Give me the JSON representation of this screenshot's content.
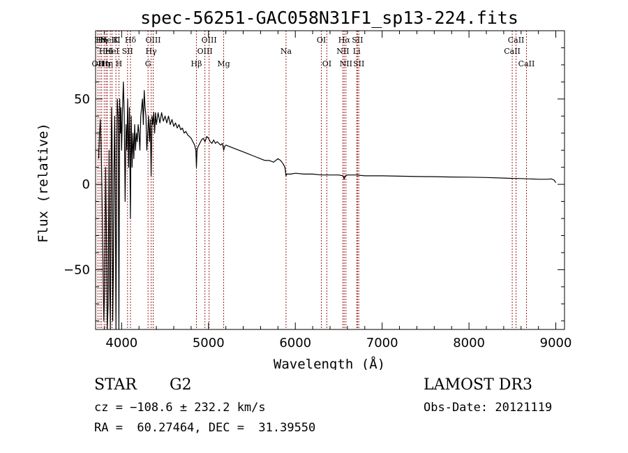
{
  "chart_data": {
    "type": "line",
    "title": "spec-56251-GAC058N31F1_sp13-224.fits",
    "xlabel": "Wavelength (Å)",
    "ylabel": "Flux (relative)",
    "xlim": [
      3700,
      9100
    ],
    "ylim": [
      -85,
      90
    ],
    "xticks": [
      4000,
      5000,
      6000,
      7000,
      8000,
      9000
    ],
    "xtick_labels": [
      "4000",
      "5000",
      "6000",
      "7000",
      "8000",
      "9000"
    ],
    "yticks": [
      -50,
      0,
      50
    ],
    "ytick_labels": [
      "−50",
      "0",
      "50"
    ],
    "series": [
      {
        "name": "spectrum",
        "points": [
          [
            3735,
            15
          ],
          [
            3745,
            30
          ],
          [
            3755,
            38
          ],
          [
            3765,
            20
          ],
          [
            3775,
            -10
          ],
          [
            3785,
            -45
          ],
          [
            3795,
            -80
          ],
          [
            3805,
            -60
          ],
          [
            3815,
            10
          ],
          [
            3825,
            -30
          ],
          [
            3835,
            -85
          ],
          [
            3845,
            -70
          ],
          [
            3855,
            20
          ],
          [
            3862,
            -60
          ],
          [
            3870,
            -85
          ],
          [
            3878,
            10
          ],
          [
            3885,
            45
          ],
          [
            3890,
            30
          ],
          [
            3898,
            -80
          ],
          [
            3905,
            -50
          ],
          [
            3912,
            10
          ],
          [
            3920,
            40
          ],
          [
            3928,
            -20
          ],
          [
            3935,
            -85
          ],
          [
            3945,
            30
          ],
          [
            3950,
            50
          ],
          [
            3960,
            40
          ],
          [
            3968,
            -85
          ],
          [
            3978,
            50
          ],
          [
            3985,
            30
          ],
          [
            3992,
            45
          ],
          [
            4000,
            20
          ],
          [
            4008,
            40
          ],
          [
            4020,
            60
          ],
          [
            4030,
            40
          ],
          [
            4040,
            -10
          ],
          [
            4050,
            35
          ],
          [
            4060,
            20
          ],
          [
            4070,
            50
          ],
          [
            4080,
            10
          ],
          [
            4090,
            45
          ],
          [
            4101,
            -20
          ],
          [
            4110,
            40
          ],
          [
            4120,
            10
          ],
          [
            4130,
            30
          ],
          [
            4140,
            15
          ],
          [
            4150,
            35
          ],
          [
            4160,
            20
          ],
          [
            4170,
            30
          ],
          [
            4180,
            25
          ],
          [
            4190,
            35
          ],
          [
            4200,
            30
          ],
          [
            4210,
            20
          ],
          [
            4220,
            40
          ],
          [
            4230,
            45
          ],
          [
            4240,
            50
          ],
          [
            4250,
            35
          ],
          [
            4260,
            55
          ],
          [
            4270,
            45
          ],
          [
            4280,
            40
          ],
          [
            4290,
            20
          ],
          [
            4300,
            30
          ],
          [
            4310,
            40
          ],
          [
            4320,
            25
          ],
          [
            4330,
            38
          ],
          [
            4340,
            5
          ],
          [
            4350,
            40
          ],
          [
            4360,
            35
          ],
          [
            4370,
            42
          ],
          [
            4380,
            30
          ],
          [
            4390,
            42
          ],
          [
            4400,
            35
          ],
          [
            4420,
            42
          ],
          [
            4440,
            36
          ],
          [
            4460,
            42
          ],
          [
            4480,
            37
          ],
          [
            4500,
            40
          ],
          [
            4520,
            36
          ],
          [
            4540,
            40
          ],
          [
            4560,
            35
          ],
          [
            4580,
            38
          ],
          [
            4600,
            34
          ],
          [
            4620,
            36
          ],
          [
            4640,
            33
          ],
          [
            4660,
            35
          ],
          [
            4680,
            32
          ],
          [
            4700,
            33
          ],
          [
            4720,
            30
          ],
          [
            4740,
            31
          ],
          [
            4760,
            29
          ],
          [
            4780,
            28
          ],
          [
            4800,
            27
          ],
          [
            4820,
            25
          ],
          [
            4840,
            23
          ],
          [
            4855,
            20
          ],
          [
            4861,
            10
          ],
          [
            4868,
            20
          ],
          [
            4880,
            22
          ],
          [
            4900,
            24
          ],
          [
            4920,
            26
          ],
          [
            4940,
            27
          ],
          [
            4960,
            25
          ],
          [
            4980,
            28
          ],
          [
            5000,
            27
          ],
          [
            5020,
            25
          ],
          [
            5040,
            24
          ],
          [
            5060,
            26
          ],
          [
            5080,
            24
          ],
          [
            5100,
            25
          ],
          [
            5120,
            24
          ],
          [
            5140,
            23
          ],
          [
            5160,
            24
          ],
          [
            5175,
            20
          ],
          [
            5185,
            22
          ],
          [
            5200,
            23
          ],
          [
            5250,
            22
          ],
          [
            5300,
            21
          ],
          [
            5350,
            20
          ],
          [
            5400,
            19
          ],
          [
            5450,
            18
          ],
          [
            5500,
            17
          ],
          [
            5550,
            16
          ],
          [
            5600,
            15
          ],
          [
            5650,
            14
          ],
          [
            5700,
            14
          ],
          [
            5750,
            13
          ],
          [
            5800,
            15
          ],
          [
            5830,
            14
          ],
          [
            5860,
            12
          ],
          [
            5880,
            10
          ],
          [
            5893,
            5
          ],
          [
            5900,
            6
          ],
          [
            5950,
            6
          ],
          [
            6000,
            6.5
          ],
          [
            6100,
            6
          ],
          [
            6200,
            6
          ],
          [
            6300,
            5.5
          ],
          [
            6400,
            5.5
          ],
          [
            6500,
            5.5
          ],
          [
            6550,
            5
          ],
          [
            6563,
            3
          ],
          [
            6575,
            5
          ],
          [
            6600,
            5.5
          ],
          [
            6700,
            5.5
          ],
          [
            6800,
            5
          ],
          [
            7000,
            5
          ],
          [
            7200,
            4.8
          ],
          [
            7400,
            4.6
          ],
          [
            7600,
            4.5
          ],
          [
            7800,
            4.3
          ],
          [
            8000,
            4.2
          ],
          [
            8200,
            4
          ],
          [
            8400,
            3.7
          ],
          [
            8500,
            3.5
          ],
          [
            8600,
            3.4
          ],
          [
            8700,
            3.2
          ],
          [
            8800,
            3
          ],
          [
            8900,
            3
          ],
          [
            8950,
            3.2
          ],
          [
            8980,
            2.5
          ],
          [
            9000,
            1
          ]
        ]
      }
    ],
    "lines": [
      {
        "x": 3727,
        "label": "OII",
        "row": 3
      },
      {
        "x": 3750,
        "label": "Hθ",
        "row": 1
      },
      {
        "x": 3770,
        "label": "Hη",
        "row": 1
      },
      {
        "x": 3799,
        "label": "Hη",
        "row": 3
      },
      {
        "x": 3820,
        "label": "HeI",
        "row": 2
      },
      {
        "x": 3835,
        "label": "Hη",
        "row": 3
      },
      {
        "x": 3869,
        "label": "NeIII",
        "row": 1
      },
      {
        "x": 3889,
        "label": "HeI",
        "row": 2
      },
      {
        "x": 3934,
        "label": "K",
        "row": 1
      },
      {
        "x": 3969,
        "label": "H",
        "row": 3
      },
      {
        "x": 4068,
        "label": "SII",
        "row": 2
      },
      {
        "x": 4102,
        "label": "Hδ",
        "row": 1
      },
      {
        "x": 4304,
        "label": "G",
        "row": 3
      },
      {
        "x": 4340,
        "label": "Hγ",
        "row": 2
      },
      {
        "x": 4363,
        "label": "OIII",
        "row": 1
      },
      {
        "x": 4861,
        "label": "Hβ",
        "row": 3
      },
      {
        "x": 4959,
        "label": "OIII",
        "row": 2
      },
      {
        "x": 5007,
        "label": "OIII",
        "row": 1
      },
      {
        "x": 5175,
        "label": "Mg",
        "row": 3
      },
      {
        "x": 5893,
        "label": "Na",
        "row": 2
      },
      {
        "x": 6300,
        "label": "OI",
        "row": 1
      },
      {
        "x": 6363,
        "label": "OI",
        "row": 3
      },
      {
        "x": 6548,
        "label": "NII",
        "row": 2
      },
      {
        "x": 6563,
        "label": "Hα",
        "row": 1
      },
      {
        "x": 6583,
        "label": "NII",
        "row": 3
      },
      {
        "x": 6707,
        "label": "Li",
        "row": 2
      },
      {
        "x": 6716,
        "label": "SII",
        "row": 1
      },
      {
        "x": 6731,
        "label": "SII",
        "row": 3
      },
      {
        "x": 8498,
        "label": "CaII",
        "row": 2
      },
      {
        "x": 8542,
        "label": "CaII",
        "row": 1
      },
      {
        "x": 8662,
        "label": "CaII",
        "row": 3
      }
    ]
  },
  "info": {
    "object_type": "STAR",
    "subclass": "G2",
    "survey": "LAMOST DR3",
    "redshift": "cz = −108.6 ± 232.2 km/s",
    "obs_date": "Obs-Date: 20121119",
    "coords": "RA =  60.27464, DEC =  31.39550"
  },
  "colors": {
    "line_marker": "#9b1c1c",
    "spectrum": "#000000",
    "axis": "#000000"
  }
}
